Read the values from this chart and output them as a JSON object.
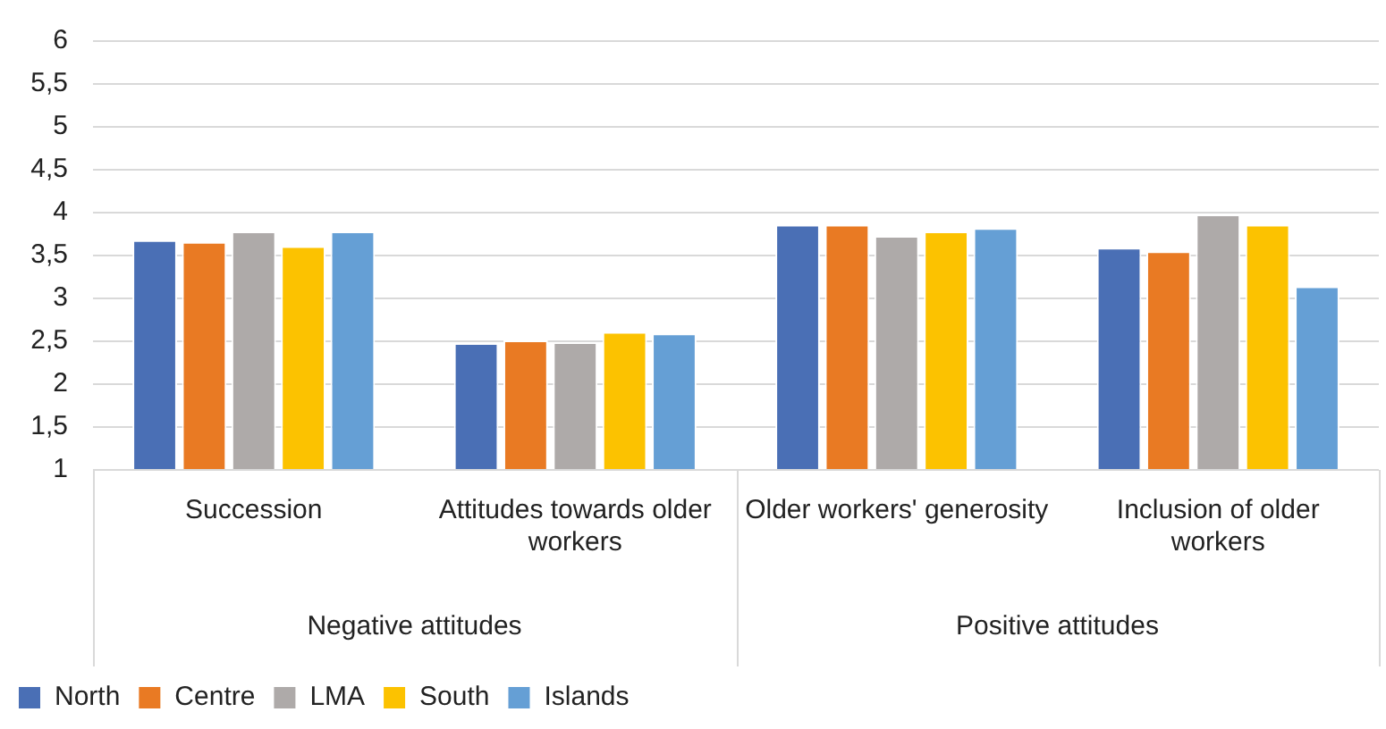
{
  "chart_data": {
    "type": "bar",
    "categories": [
      "Succession",
      "Attitudes towards older workers",
      "Older workers' generosity",
      "Inclusion of older workers"
    ],
    "series": [
      {
        "name": "North",
        "color": "#4a6fb5",
        "values": [
          3.68,
          2.48,
          3.86,
          3.59
        ]
      },
      {
        "name": "Centre",
        "color": "#e97a23",
        "values": [
          3.66,
          2.51,
          3.86,
          3.55
        ]
      },
      {
        "name": "LMA",
        "color": "#aeaaa9",
        "values": [
          3.78,
          2.49,
          3.73,
          3.98
        ]
      },
      {
        "name": "South",
        "color": "#fcc200",
        "values": [
          3.61,
          2.61,
          3.78,
          3.86
        ]
      },
      {
        "name": "Islands",
        "color": "#659fd5",
        "values": [
          3.78,
          2.59,
          3.82,
          3.14
        ]
      }
    ],
    "ylim": [
      1,
      6
    ],
    "yticks": [
      1,
      {
        "value": 1.5,
        "label": "1,5"
      },
      2,
      {
        "value": 2.5,
        "label": "2,5"
      },
      3,
      {
        "value": 3.5,
        "label": "3,5"
      },
      4,
      {
        "value": 4.5,
        "label": "4,5"
      },
      5,
      {
        "value": 5.5,
        "label": "5,5"
      },
      6
    ],
    "grid": "y",
    "legend": "bottom",
    "annotations": [
      "Negative attitudes",
      "Positive attitudes"
    ]
  }
}
